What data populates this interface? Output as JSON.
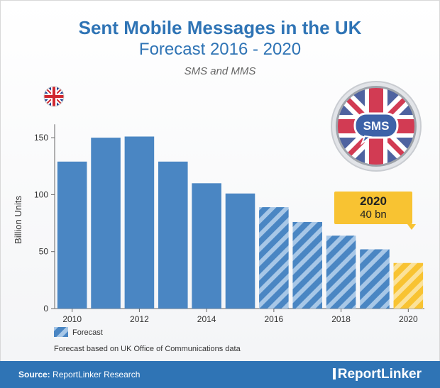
{
  "title": "Sent Mobile Messages in the UK",
  "subtitle": "Forecast 2016 - 2020",
  "subsubtitle": "SMS and MMS",
  "badge_text": "SMS",
  "callout": {
    "year": "2020",
    "value": "40 bn"
  },
  "legend": {
    "forecast_label": "Forecast"
  },
  "note": "Forecast based on UK Office of Communications data",
  "footer": {
    "source_label": "Source:",
    "source_text": "ReportLinker Research",
    "brand": "ReportLinker"
  },
  "colors": {
    "bar": "#4a86c3",
    "forecast_stripe": "#a7c7e7",
    "highlight": "#f8c332",
    "header_blue": "#2f74b5"
  },
  "chart_data": {
    "type": "bar",
    "title": "Sent Mobile Messages in the UK",
    "subtitle": "Forecast 2016 - 2020",
    "ylabel": "Billion Units",
    "xlabel": "",
    "categories": [
      "2010",
      "2011",
      "2012",
      "2013",
      "2014",
      "2015",
      "2016",
      "2017",
      "2018",
      "2019",
      "2020"
    ],
    "values": [
      129,
      150,
      151,
      129,
      110,
      101,
      89,
      76,
      64,
      52,
      40
    ],
    "forecast": [
      false,
      false,
      false,
      false,
      false,
      false,
      true,
      true,
      true,
      true,
      true
    ],
    "x_tick_labels": [
      "2010",
      "2012",
      "2014",
      "2016",
      "2018",
      "2020"
    ],
    "y_ticks": [
      0,
      50,
      100,
      150
    ],
    "ylim": [
      0,
      165
    ],
    "grid": false,
    "legend_position": "bottom-left"
  }
}
